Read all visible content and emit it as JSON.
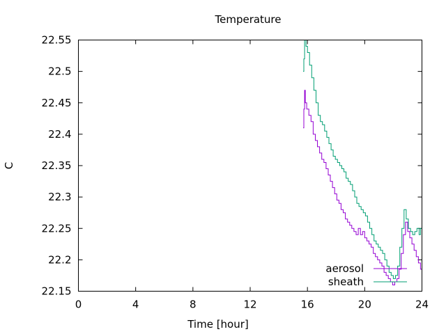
{
  "chart_data": {
    "type": "line",
    "title": "Temperature",
    "xlabel": "Time [hour]",
    "ylabel": "C",
    "xlim": [
      0,
      24
    ],
    "ylim": [
      22.15,
      22.55
    ],
    "xticks": [
      0,
      4,
      8,
      12,
      16,
      20,
      24
    ],
    "xtick_labels": [
      "0",
      "4",
      "8",
      "12",
      "16",
      "20",
      "24"
    ],
    "yticks": [
      22.15,
      22.2,
      22.25,
      22.3,
      22.35,
      22.4,
      22.45,
      22.5,
      22.55
    ],
    "ytick_labels": [
      "22.15",
      "22.2",
      "22.25",
      "22.3",
      "22.35",
      "22.4",
      "22.45",
      "22.5",
      "22.55"
    ],
    "grid": false,
    "legend_position": "bottom-right",
    "series": [
      {
        "name": "aerosol",
        "color": "#9400d3",
        "points": [
          [
            15.7,
            22.41
          ],
          [
            15.75,
            22.44
          ],
          [
            15.8,
            22.47
          ],
          [
            15.85,
            22.45
          ],
          [
            15.95,
            22.44
          ],
          [
            16.1,
            22.43
          ],
          [
            16.25,
            22.42
          ],
          [
            16.4,
            22.4
          ],
          [
            16.55,
            22.39
          ],
          [
            16.7,
            22.38
          ],
          [
            16.85,
            22.37
          ],
          [
            17.0,
            22.36
          ],
          [
            17.15,
            22.355
          ],
          [
            17.3,
            22.345
          ],
          [
            17.45,
            22.335
          ],
          [
            17.6,
            22.325
          ],
          [
            17.75,
            22.315
          ],
          [
            17.9,
            22.305
          ],
          [
            18.05,
            22.295
          ],
          [
            18.2,
            22.29
          ],
          [
            18.35,
            22.28
          ],
          [
            18.5,
            22.275
          ],
          [
            18.65,
            22.265
          ],
          [
            18.8,
            22.26
          ],
          [
            18.95,
            22.255
          ],
          [
            19.1,
            22.25
          ],
          [
            19.25,
            22.245
          ],
          [
            19.4,
            22.24
          ],
          [
            19.55,
            22.25
          ],
          [
            19.7,
            22.24
          ],
          [
            19.85,
            22.245
          ],
          [
            20.0,
            22.235
          ],
          [
            20.15,
            22.23
          ],
          [
            20.3,
            22.225
          ],
          [
            20.45,
            22.22
          ],
          [
            20.6,
            22.21
          ],
          [
            20.75,
            22.205
          ],
          [
            20.9,
            22.2
          ],
          [
            21.05,
            22.195
          ],
          [
            21.2,
            22.19
          ],
          [
            21.35,
            22.18
          ],
          [
            21.5,
            22.175
          ],
          [
            21.65,
            22.17
          ],
          [
            21.8,
            22.165
          ],
          [
            21.95,
            22.16
          ],
          [
            22.1,
            22.165
          ],
          [
            22.25,
            22.17
          ],
          [
            22.4,
            22.185
          ],
          [
            22.55,
            22.21
          ],
          [
            22.7,
            22.24
          ],
          [
            22.85,
            22.26
          ],
          [
            23.0,
            22.245
          ],
          [
            23.15,
            22.235
          ],
          [
            23.3,
            22.225
          ],
          [
            23.45,
            22.215
          ],
          [
            23.6,
            22.205
          ],
          [
            23.75,
            22.195
          ],
          [
            23.9,
            22.185
          ],
          [
            24.0,
            22.18
          ]
        ]
      },
      {
        "name": "sheath",
        "color": "#009e73",
        "points": [
          [
            15.7,
            22.5
          ],
          [
            15.75,
            22.52
          ],
          [
            15.8,
            22.55
          ],
          [
            15.9,
            22.54
          ],
          [
            16.0,
            22.53
          ],
          [
            16.15,
            22.51
          ],
          [
            16.3,
            22.49
          ],
          [
            16.45,
            22.47
          ],
          [
            16.6,
            22.45
          ],
          [
            16.75,
            22.43
          ],
          [
            16.9,
            22.42
          ],
          [
            17.05,
            22.415
          ],
          [
            17.2,
            22.405
          ],
          [
            17.35,
            22.395
          ],
          [
            17.5,
            22.385
          ],
          [
            17.65,
            22.375
          ],
          [
            17.8,
            22.365
          ],
          [
            17.95,
            22.36
          ],
          [
            18.1,
            22.355
          ],
          [
            18.25,
            22.35
          ],
          [
            18.4,
            22.345
          ],
          [
            18.55,
            22.34
          ],
          [
            18.7,
            22.33
          ],
          [
            18.85,
            22.325
          ],
          [
            19.0,
            22.32
          ],
          [
            19.15,
            22.31
          ],
          [
            19.3,
            22.3
          ],
          [
            19.45,
            22.29
          ],
          [
            19.6,
            22.285
          ],
          [
            19.75,
            22.28
          ],
          [
            19.9,
            22.275
          ],
          [
            20.05,
            22.27
          ],
          [
            20.2,
            22.26
          ],
          [
            20.35,
            22.25
          ],
          [
            20.5,
            22.24
          ],
          [
            20.65,
            22.23
          ],
          [
            20.8,
            22.225
          ],
          [
            20.95,
            22.22
          ],
          [
            21.1,
            22.215
          ],
          [
            21.25,
            22.21
          ],
          [
            21.4,
            22.2
          ],
          [
            21.55,
            22.19
          ],
          [
            21.7,
            22.18
          ],
          [
            21.85,
            22.175
          ],
          [
            22.0,
            22.17
          ],
          [
            22.15,
            22.175
          ],
          [
            22.3,
            22.19
          ],
          [
            22.45,
            22.22
          ],
          [
            22.6,
            22.25
          ],
          [
            22.75,
            22.28
          ],
          [
            22.9,
            22.265
          ],
          [
            23.05,
            22.25
          ],
          [
            23.2,
            22.245
          ],
          [
            23.35,
            22.24
          ],
          [
            23.5,
            22.245
          ],
          [
            23.65,
            22.25
          ],
          [
            23.8,
            22.24
          ],
          [
            23.9,
            22.25
          ],
          [
            24.0,
            22.2
          ]
        ]
      }
    ]
  }
}
